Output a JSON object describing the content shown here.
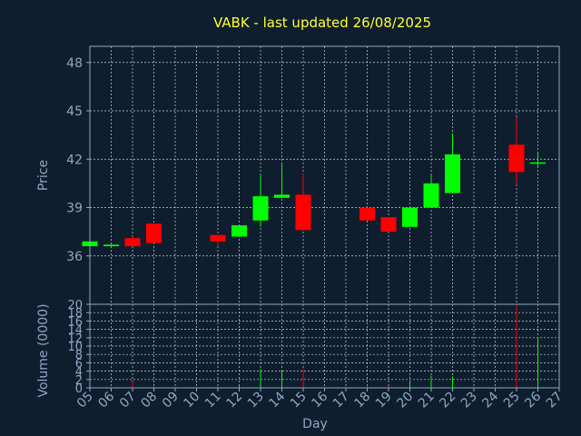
{
  "chart_data": {
    "type": "candlestick",
    "title": "VABK - last updated 26/08/2025",
    "xlabel": "Day",
    "price_panel": {
      "ylabel": "Price",
      "ylim": [
        33,
        49
      ],
      "yticks": [
        36,
        39,
        42,
        45,
        48
      ]
    },
    "volume_panel": {
      "ylabel": "Volume (0000)",
      "ylim": [
        0,
        20
      ],
      "yticks": [
        0,
        2,
        4,
        6,
        8,
        10,
        12,
        14,
        16,
        18,
        20
      ]
    },
    "xlim": [
      5,
      27
    ],
    "x_tick_labels": [
      "05",
      "06",
      "07",
      "08",
      "09",
      "10",
      "11",
      "12",
      "13",
      "14",
      "15",
      "16",
      "17",
      "18",
      "19",
      "20",
      "21",
      "22",
      "23",
      "24",
      "25",
      "26",
      "27"
    ],
    "grid": true,
    "colors": {
      "up": "#00ff00",
      "down": "#ff0000",
      "title": "#ffff33",
      "axis": "#8fa7c4",
      "background": "#0f1e2e"
    },
    "candles": [
      {
        "day": 5,
        "open": 36.6,
        "high": 36.9,
        "low": 36.5,
        "close": 36.9,
        "volume": 0.2
      },
      {
        "day": 6,
        "open": 36.6,
        "high": 36.7,
        "low": 36.6,
        "close": 36.7,
        "volume": 0.1
      },
      {
        "day": 7,
        "open": 37.1,
        "high": 37.2,
        "low": 36.6,
        "close": 36.6,
        "volume": 1.5
      },
      {
        "day": 8,
        "open": 38.0,
        "high": 38.0,
        "low": 36.8,
        "close": 36.8,
        "volume": 0.3
      },
      {
        "day": 11,
        "open": 37.3,
        "high": 37.3,
        "low": 36.6,
        "close": 36.9,
        "volume": 0.3
      },
      {
        "day": 12,
        "open": 37.2,
        "high": 37.9,
        "low": 37.2,
        "close": 37.9,
        "volume": 0.5
      },
      {
        "day": 13,
        "open": 38.2,
        "high": 41.1,
        "low": 37.8,
        "close": 39.7,
        "volume": 4.5
      },
      {
        "day": 14,
        "open": 39.6,
        "high": 41.7,
        "low": 39.6,
        "close": 39.8,
        "volume": 4.0
      },
      {
        "day": 15,
        "open": 39.8,
        "high": 41.1,
        "low": 37.6,
        "close": 37.6,
        "volume": 4.5
      },
      {
        "day": 18,
        "open": 39.0,
        "high": 39.0,
        "low": 38.2,
        "close": 38.2,
        "volume": 0.4
      },
      {
        "day": 19,
        "open": 38.4,
        "high": 38.4,
        "low": 37.5,
        "close": 37.5,
        "volume": 0.4
      },
      {
        "day": 20,
        "open": 37.8,
        "high": 39.0,
        "low": 37.8,
        "close": 39.0,
        "volume": 1.3
      },
      {
        "day": 21,
        "open": 39.0,
        "high": 41.1,
        "low": 39.0,
        "close": 40.5,
        "volume": 2.9
      },
      {
        "day": 22,
        "open": 39.9,
        "high": 43.6,
        "low": 39.9,
        "close": 42.3,
        "volume": 2.7
      },
      {
        "day": 25,
        "open": 42.9,
        "high": 44.6,
        "low": 40.4,
        "close": 41.2,
        "volume": 20.0
      },
      {
        "day": 26,
        "open": 41.8,
        "high": 42.4,
        "low": 41.5,
        "close": 41.8,
        "volume": 12.0
      }
    ]
  }
}
